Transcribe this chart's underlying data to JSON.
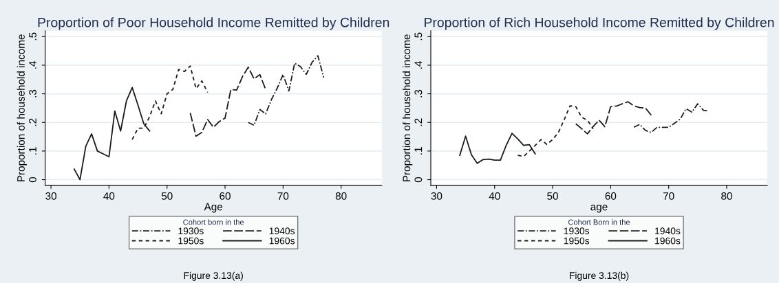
{
  "chart_data": [
    {
      "type": "line",
      "title": "Proportion of Poor Household Income Remitted by Children",
      "xlabel": "Age",
      "ylabel": "Proportion of household income",
      "legend_title": "Cohort born in the",
      "legend": "bottom",
      "grid": "y",
      "xlim": [
        29,
        87
      ],
      "ylim": [
        -0.02,
        0.52
      ],
      "xticks": [
        30,
        40,
        50,
        60,
        70,
        80
      ],
      "yticks": [
        {
          "value": 0,
          "label": "0"
        },
        {
          "value": 0.1,
          "label": ".1"
        },
        {
          "value": 0.2,
          "label": ".2"
        },
        {
          "value": 0.3,
          "label": ".3"
        },
        {
          "value": 0.4,
          "label": ".4"
        },
        {
          "value": 0.5,
          "label": ".5"
        }
      ],
      "annotations": [
        "Figure 3.13(a)"
      ],
      "series": [
        {
          "name": "1930s",
          "color": "#1a1a1a",
          "line_style": "dashdot",
          "x": [
            64,
            65,
            66,
            67,
            68,
            69,
            70,
            71,
            72,
            73,
            74,
            75,
            76,
            77
          ],
          "values": [
            0.2,
            0.19,
            0.245,
            0.23,
            0.28,
            0.32,
            0.367,
            0.31,
            0.407,
            0.395,
            0.368,
            0.41,
            0.433,
            0.357
          ]
        },
        {
          "name": "1940s",
          "color": "#1a1a1a",
          "line_style": "longdash",
          "x": [
            54,
            55,
            56,
            57,
            58,
            59,
            60,
            61,
            62,
            63,
            64,
            65,
            66,
            67
          ],
          "values": [
            0.233,
            0.152,
            0.165,
            0.21,
            0.183,
            0.203,
            0.215,
            0.315,
            0.313,
            0.36,
            0.393,
            0.352,
            0.367,
            0.315
          ]
        },
        {
          "name": "1950s",
          "color": "#1a1a1a",
          "line_style": "dashed",
          "x": [
            44,
            45,
            46,
            47,
            48,
            49,
            50,
            51,
            52,
            53,
            54,
            55,
            56,
            57
          ],
          "values": [
            0.14,
            0.18,
            0.18,
            0.22,
            0.275,
            0.23,
            0.3,
            0.315,
            0.385,
            0.378,
            0.397,
            0.318,
            0.345,
            0.305
          ]
        },
        {
          "name": "1960s",
          "color": "#1a1a1a",
          "line_style": "solid",
          "x": [
            34,
            35,
            36,
            37,
            38,
            39,
            40,
            41,
            42,
            43,
            44,
            45,
            46,
            47
          ],
          "values": [
            0.037,
            0.0,
            0.117,
            0.16,
            0.1,
            0.09,
            0.08,
            0.24,
            0.17,
            0.275,
            0.322,
            0.26,
            0.195,
            0.17
          ]
        }
      ]
    },
    {
      "type": "line",
      "title": "Proportion of Rich Household Income Remitted by Children",
      "xlabel": "age",
      "ylabel": "Proportion of household income",
      "legend_title": "Cohort Born in the",
      "legend": "bottom",
      "grid": "y",
      "xlim": [
        29,
        87
      ],
      "ylim": [
        -0.02,
        0.52
      ],
      "xticks": [
        30,
        40,
        50,
        60,
        70,
        80
      ],
      "yticks": [
        {
          "value": 0,
          "label": "0"
        },
        {
          "value": 0.1,
          "label": ".1"
        },
        {
          "value": 0.2,
          "label": ".2"
        },
        {
          "value": 0.3,
          "label": ".3"
        },
        {
          "value": 0.4,
          "label": ".4"
        },
        {
          "value": 0.5,
          "label": ".5"
        }
      ],
      "annotations": [
        "Figure 3.13(b)"
      ],
      "series": [
        {
          "name": "1930s",
          "color": "#1a1a1a",
          "line_style": "dashdot",
          "x": [
            64,
            65,
            66,
            67,
            68,
            69,
            70,
            71,
            72,
            73,
            74,
            75,
            76,
            76.6
          ],
          "values": [
            0.183,
            0.193,
            0.172,
            0.165,
            0.183,
            0.183,
            0.183,
            0.197,
            0.212,
            0.248,
            0.236,
            0.265,
            0.242,
            0.241
          ]
        },
        {
          "name": "1940s",
          "color": "#1a1a1a",
          "line_style": "longdash",
          "x": [
            54,
            55,
            56,
            57,
            58,
            59,
            60,
            61,
            62,
            63,
            64,
            65,
            66,
            67
          ],
          "values": [
            0.195,
            0.178,
            0.16,
            0.186,
            0.208,
            0.185,
            0.255,
            0.257,
            0.265,
            0.272,
            0.258,
            0.252,
            0.25,
            0.225
          ]
        },
        {
          "name": "1950s",
          "color": "#1a1a1a",
          "line_style": "dashed",
          "x": [
            44,
            45,
            46,
            47,
            48,
            49,
            50,
            51,
            52,
            53,
            54,
            55,
            56,
            57
          ],
          "values": [
            0.085,
            0.081,
            0.1,
            0.12,
            0.14,
            0.123,
            0.14,
            0.165,
            0.21,
            0.258,
            0.255,
            0.218,
            0.208,
            0.178
          ]
        },
        {
          "name": "1960s",
          "color": "#1a1a1a",
          "line_style": "solid",
          "x": [
            34,
            35,
            36,
            37,
            38,
            39,
            40,
            41,
            42,
            43,
            44,
            45,
            46,
            47
          ],
          "values": [
            0.085,
            0.152,
            0.087,
            0.057,
            0.07,
            0.072,
            0.068,
            0.068,
            0.12,
            0.162,
            0.142,
            0.12,
            0.122,
            0.09
          ]
        }
      ]
    }
  ]
}
